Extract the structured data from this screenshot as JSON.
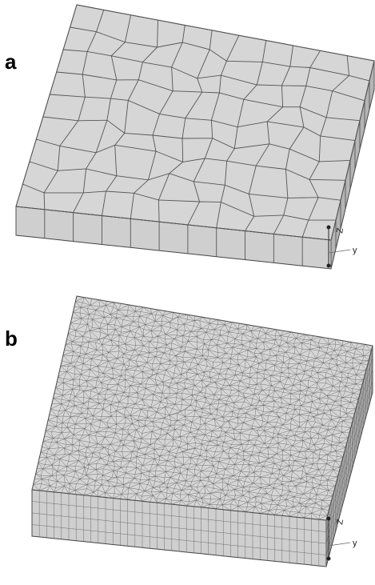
{
  "panels": [
    {
      "label": "a",
      "axis_labels": [
        "Z",
        "y"
      ]
    },
    {
      "label": "b",
      "axis_labels": [
        "Z",
        "y"
      ]
    }
  ]
}
